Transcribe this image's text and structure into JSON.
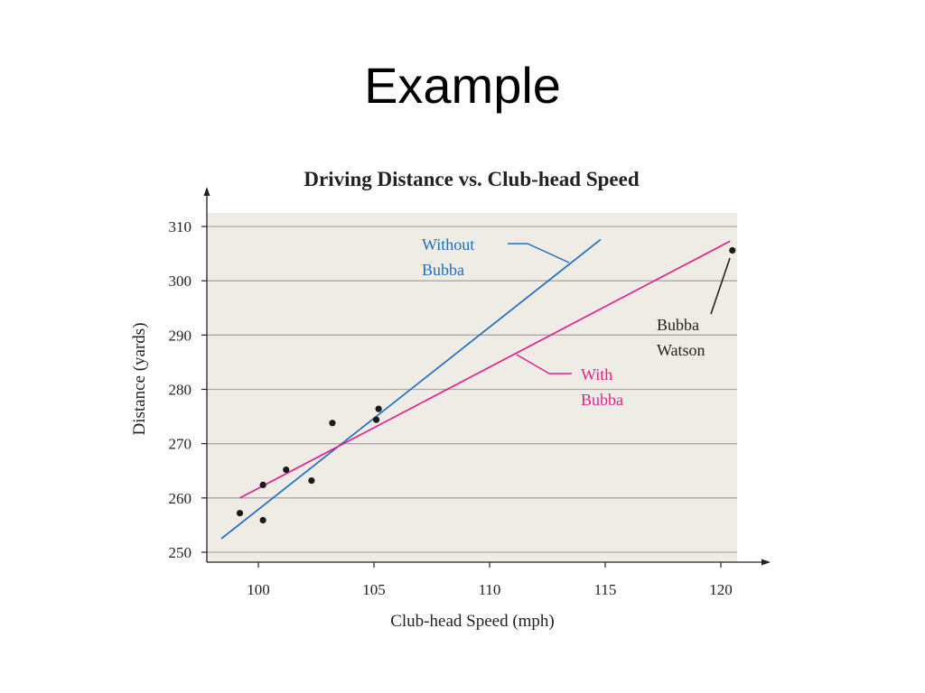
{
  "slide": {
    "title": "Example"
  },
  "colors": {
    "plot_bg": "#efece6",
    "grid": "#a9a9a9",
    "without_line": "#1f6fbf",
    "with_line": "#e0208a",
    "points": "#1a1a1a",
    "text": "#222222"
  },
  "chart_data": {
    "type": "scatter",
    "title": "Driving Distance vs. Club-head Speed",
    "xlabel": "Club-head Speed (mph)",
    "ylabel": "Distance (yards)",
    "xlim": [
      98,
      121
    ],
    "ylim": [
      248,
      312
    ],
    "xticks": [
      100,
      105,
      110,
      115,
      120
    ],
    "yticks": [
      250,
      260,
      270,
      280,
      290,
      300,
      310
    ],
    "grid": "horizontal",
    "points": [
      {
        "x": 99.2,
        "y": 257.2
      },
      {
        "x": 100.2,
        "y": 262.4
      },
      {
        "x": 100.2,
        "y": 255.9
      },
      {
        "x": 101.2,
        "y": 265.2
      },
      {
        "x": 102.3,
        "y": 263.2
      },
      {
        "x": 103.2,
        "y": 273.8
      },
      {
        "x": 105.1,
        "y": 274.4
      },
      {
        "x": 105.2,
        "y": 276.4
      },
      {
        "x": 120.5,
        "y": 305.6
      }
    ],
    "lines": [
      {
        "key": "without",
        "label": [
          "Without",
          "Bubba"
        ],
        "x": [
          98.4,
          114.8
        ],
        "y": [
          252.5,
          307.6
        ]
      },
      {
        "key": "with",
        "label": [
          "With",
          "Bubba"
        ],
        "x": [
          99.2,
          120.4
        ],
        "y": [
          260.0,
          307.3
        ]
      }
    ],
    "annotations": [
      {
        "key": "bubba",
        "text": [
          "Bubba",
          "Watson"
        ]
      }
    ]
  }
}
